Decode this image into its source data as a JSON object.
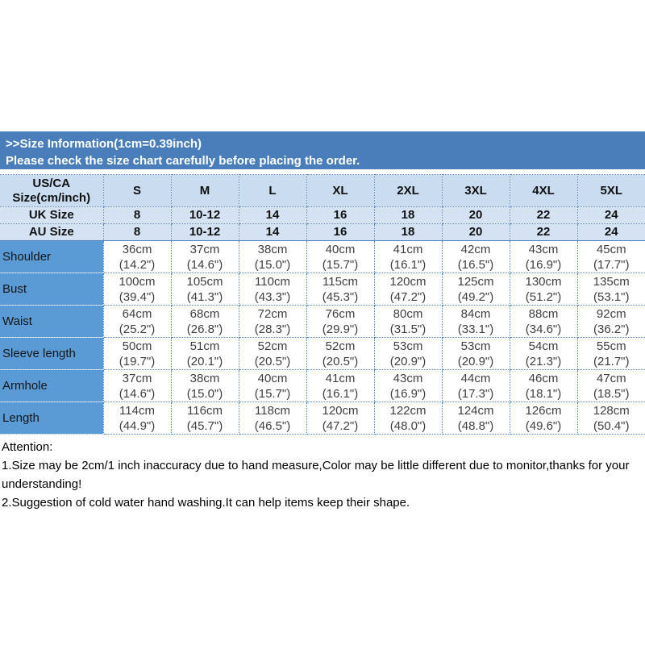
{
  "colors": {
    "banner_bg": "#4a7ebb",
    "banner_text": "#ffffff",
    "header_bg": "#c9dcf0",
    "subheader_bg": "#d4e2f3",
    "label_bg": "#5b9bd5",
    "grid_border": "#4f81bd",
    "data_text": "#3f3f3f",
    "heading_text": "#101010"
  },
  "banner": {
    "line1": ">>Size Information(1cm=0.39inch)",
    "line2": "Please check the size chart carefully before placing the order."
  },
  "table": {
    "corner": {
      "line1": "US/CA",
      "line2": "Size(cm/inch)"
    },
    "size_headers": [
      "S",
      "M",
      "L",
      "XL",
      "2XL",
      "3XL",
      "4XL",
      "5XL"
    ],
    "uk": {
      "label": "UK Size",
      "values": [
        "8",
        "10-12",
        "14",
        "16",
        "18",
        "20",
        "22",
        "24"
      ]
    },
    "au": {
      "label": "AU Size",
      "values": [
        "8",
        "10-12",
        "14",
        "16",
        "18",
        "20",
        "22",
        "24"
      ]
    },
    "rows": [
      {
        "label": "Shoulder",
        "cells": [
          "36cm\n(14.2\")",
          "37cm\n(14.6\")",
          "38cm\n(15.0\")",
          "40cm\n(15.7\")",
          "41cm\n(16.1\")",
          "42cm\n(16.5\")",
          "43cm\n(16.9\")",
          "45cm\n(17.7\")"
        ]
      },
      {
        "label": "Bust",
        "cells": [
          "100cm\n(39.4\")",
          "105cm\n(41.3\")",
          "110cm\n(43.3\")",
          "115cm\n(45.3\")",
          "120cm\n(47.2\")",
          "125cm\n(49.2\")",
          "130cm\n(51.2\")",
          "135cm\n(53.1\")"
        ]
      },
      {
        "label": "Waist",
        "cells": [
          "64cm\n(25.2\")",
          "68cm\n(26.8\")",
          "72cm\n(28.3\")",
          "76cm\n(29.9\")",
          "80cm\n(31.5\")",
          "84cm\n(33.1\")",
          "88cm\n(34.6\")",
          "92cm\n(36.2\")"
        ]
      },
      {
        "label": "Sleeve length",
        "cells": [
          "50cm\n(19.7\")",
          "51cm\n(20.1\")",
          "52cm\n(20.5\")",
          "52cm\n(20.5\")",
          "53cm\n(20.9\")",
          "53cm\n(20.9\")",
          "54cm\n(21.3\")",
          "55cm\n(21.7\")"
        ]
      },
      {
        "label": "Armhole",
        "cells": [
          "37cm\n(14.6\")",
          "38cm\n(15.0\")",
          "40cm\n(15.7\")",
          "41cm\n(16.1\")",
          "43cm\n(16.9\")",
          "44cm\n(17.3\")",
          "46cm\n(18.1\")",
          "47cm\n(18.5\")"
        ]
      },
      {
        "label": "Length",
        "cells": [
          "114cm\n(44.9\")",
          "116cm\n(45.7\")",
          "118cm\n(46.5\")",
          "120cm\n(47.2\")",
          "122cm\n(48.0\")",
          "124cm\n(48.8\")",
          "126cm\n(49.6\")",
          "128cm\n(50.4\")"
        ]
      }
    ]
  },
  "attention": {
    "title": "Attention:",
    "note1": "1.Size may be 2cm/1 inch inaccuracy due to hand measure,Color may be little different due to monitor,thanks for your understanding!",
    "note2": "2.Suggestion of cold water hand washing.It can help items keep their shape."
  }
}
